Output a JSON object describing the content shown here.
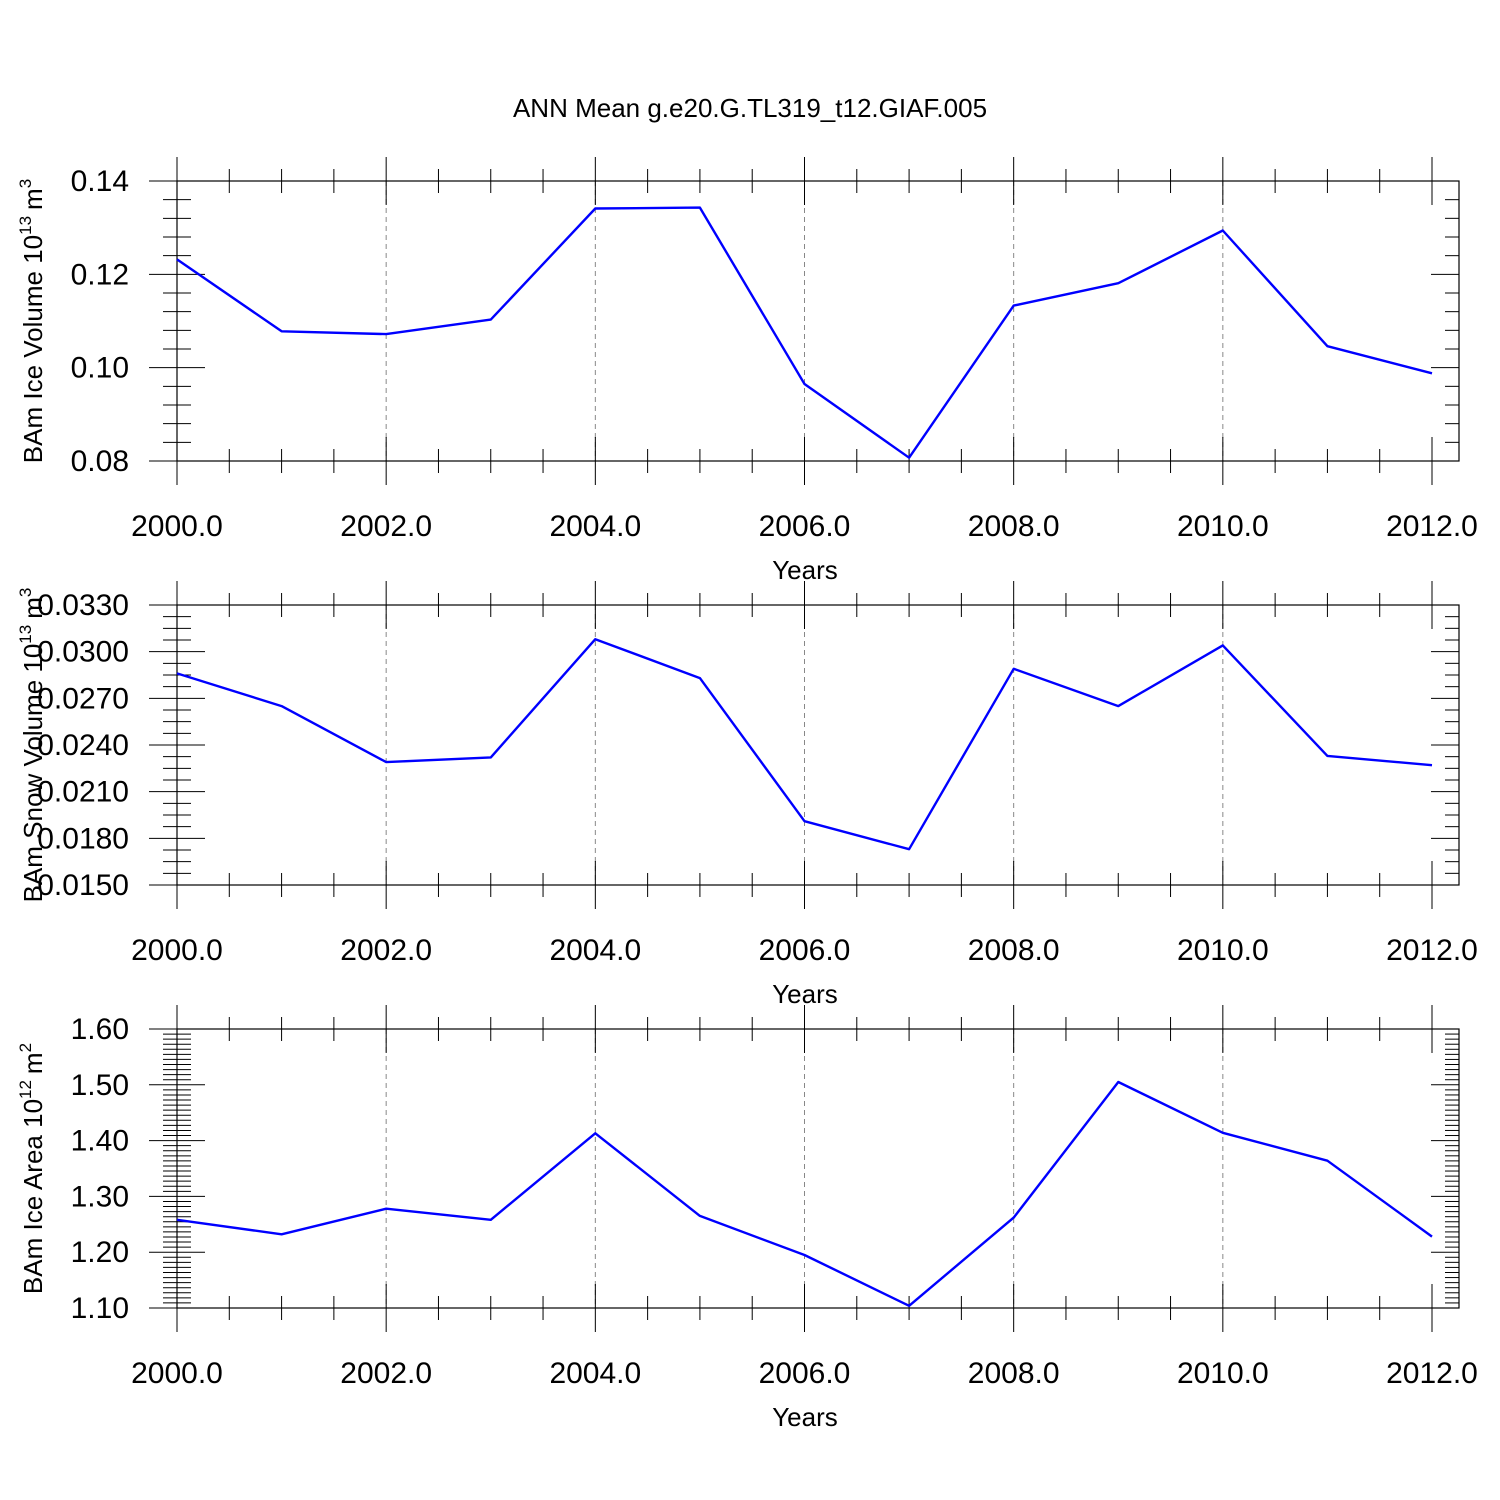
{
  "title": "ANN Mean g.e20.G.TL319_t12.GIAF.005",
  "colors": {
    "series": "#0000ff",
    "grid": "#888888",
    "axis": "#000000"
  },
  "chart_data": [
    {
      "type": "line",
      "xlabel": "Years",
      "ylabel": "BAm Ice Volume 10",
      "ylabel_sup": "13",
      "ylabel_unit": "m",
      "ylabel_unit_sup": "3",
      "xlim": [
        2000,
        2012
      ],
      "ylim": [
        0.08,
        0.14
      ],
      "xticks": [
        2000,
        2002,
        2004,
        2006,
        2008,
        2010,
        2012
      ],
      "xtick_labels": [
        "2000.0",
        "2002.0",
        "2004.0",
        "2006.0",
        "2008.0",
        "2010.0",
        "2012.0"
      ],
      "yticks": [
        0.08,
        0.1,
        0.12,
        0.14
      ],
      "ytick_labels": [
        "0.08",
        "0.10",
        "0.12",
        "0.14"
      ],
      "x": [
        2000,
        2001,
        2002,
        2003,
        2004,
        2005,
        2006,
        2007,
        2008,
        2009,
        2010,
        2011,
        2012
      ],
      "series": [
        {
          "values": [
            0.1232,
            0.1078,
            0.1072,
            0.1103,
            0.1341,
            0.1343,
            0.0965,
            0.0807,
            0.1133,
            0.1181,
            0.1294,
            0.1046,
            0.0988
          ]
        }
      ],
      "grid": "vertical dashed at major x ticks"
    },
    {
      "type": "line",
      "xlabel": "Years",
      "ylabel": "BAm Snow Volume 10",
      "ylabel_sup": "13",
      "ylabel_unit": "m",
      "ylabel_unit_sup": "3",
      "xlim": [
        2000,
        2012
      ],
      "ylim": [
        0.015,
        0.033
      ],
      "xticks": [
        2000,
        2002,
        2004,
        2006,
        2008,
        2010,
        2012
      ],
      "xtick_labels": [
        "2000.0",
        "2002.0",
        "2004.0",
        "2006.0",
        "2008.0",
        "2010.0",
        "2012.0"
      ],
      "yticks": [
        0.015,
        0.018,
        0.021,
        0.024,
        0.027,
        0.03,
        0.033
      ],
      "ytick_labels": [
        "0.0150",
        "0.0180",
        "0.0210",
        "0.0240",
        "0.0270",
        "0.0300",
        "0.0330"
      ],
      "x": [
        2000,
        2001,
        2002,
        2003,
        2004,
        2005,
        2006,
        2007,
        2008,
        2009,
        2010,
        2011,
        2012
      ],
      "series": [
        {
          "values": [
            0.0286,
            0.0265,
            0.0229,
            0.0232,
            0.0308,
            0.0283,
            0.0191,
            0.0173,
            0.0289,
            0.0265,
            0.0304,
            0.0233,
            0.0227
          ]
        }
      ],
      "grid": "vertical dashed at major x ticks"
    },
    {
      "type": "line",
      "xlabel": "Years",
      "ylabel": "BAm Ice Area 10",
      "ylabel_sup": "12",
      "ylabel_unit": "m",
      "ylabel_unit_sup": "2",
      "xlim": [
        2000,
        2012
      ],
      "ylim": [
        1.1,
        1.6
      ],
      "xticks": [
        2000,
        2002,
        2004,
        2006,
        2008,
        2010,
        2012
      ],
      "xtick_labels": [
        "2000.0",
        "2002.0",
        "2004.0",
        "2006.0",
        "2008.0",
        "2010.0",
        "2012.0"
      ],
      "yticks": [
        1.1,
        1.2,
        1.3,
        1.4,
        1.5,
        1.6
      ],
      "ytick_labels": [
        "1.10",
        "1.20",
        "1.30",
        "1.40",
        "1.50",
        "1.60"
      ],
      "x": [
        2000,
        2001,
        2002,
        2003,
        2004,
        2005,
        2006,
        2007,
        2008,
        2009,
        2010,
        2011,
        2012
      ],
      "series": [
        {
          "values": [
            1.258,
            1.232,
            1.278,
            1.258,
            1.413,
            1.265,
            1.195,
            1.104,
            1.262,
            1.505,
            1.414,
            1.364,
            1.228
          ]
        }
      ],
      "grid": "vertical dashed at major x ticks"
    }
  ]
}
